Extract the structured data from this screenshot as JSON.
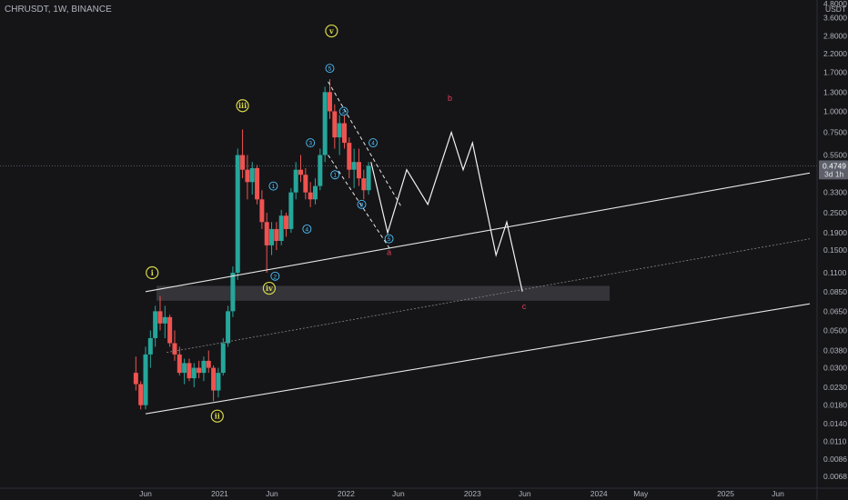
{
  "header": {
    "symbol": "CHRUSDT, 1W, BINANCE",
    "currency_top": "4.8000",
    "currency_unit": "USDT"
  },
  "price_tag": {
    "value": "0.4749",
    "countdown": "3d 1h",
    "color": "#5d606b"
  },
  "colors": {
    "up": "#26a69a",
    "down": "#ef5350",
    "wave": "#d8d84a",
    "subwave": "#4dc3ff",
    "corrective": "#e23e57",
    "zone": "#3a3a40"
  },
  "chart_data": {
    "type": "candlestick",
    "title": "",
    "y_scale": "log",
    "y_ticks": [
      3.6,
      2.8,
      2.2,
      1.7,
      1.3,
      1.0,
      0.75,
      0.55,
      0.43,
      0.33,
      0.25,
      0.19,
      0.15,
      0.11,
      0.085,
      0.065,
      0.05,
      0.038,
      0.03,
      0.023,
      0.018,
      0.014,
      0.011,
      0.0086,
      0.0068
    ],
    "y_tick_labels": [
      "3.6000",
      "2.8000",
      "2.2000",
      "1.7000",
      "1.3000",
      "1.0000",
      "0.7500",
      "0.5500",
      "0.4300",
      "0.3300",
      "0.2500",
      "0.1900",
      "0.1500",
      "0.1100",
      "0.0850",
      "0.0650",
      "0.0500",
      "0.0380",
      "0.0300",
      "0.0230",
      "0.0180",
      "0.0140",
      "0.0110",
      "0.0086",
      "0.0068"
    ],
    "x_tick_labels": [
      "Jun",
      "2021",
      "Jun",
      "2022",
      "Jun",
      "2023",
      "Jun",
      "2024",
      "May",
      "2025",
      "Jun"
    ],
    "x_tick_dates": [
      "2020-06-01",
      "2021-01-01",
      "2021-06-01",
      "2022-01-01",
      "2022-06-01",
      "2023-01-01",
      "2023-06-01",
      "2024-01-01",
      "2024-05-01",
      "2025-01-01",
      "2025-06-01"
    ],
    "candles": [
      [
        "2020-05-04",
        0.028,
        0.035,
        0.022,
        0.024
      ],
      [
        "2020-05-18",
        0.024,
        0.025,
        0.017,
        0.018
      ],
      [
        "2020-06-01",
        0.018,
        0.04,
        0.017,
        0.036
      ],
      [
        "2020-06-15",
        0.036,
        0.05,
        0.03,
        0.045
      ],
      [
        "2020-06-29",
        0.045,
        0.07,
        0.04,
        0.065
      ],
      [
        "2020-07-13",
        0.065,
        0.08,
        0.05,
        0.055
      ],
      [
        "2020-07-27",
        0.055,
        0.07,
        0.045,
        0.06
      ],
      [
        "2020-08-10",
        0.06,
        0.062,
        0.04,
        0.042
      ],
      [
        "2020-08-24",
        0.042,
        0.05,
        0.033,
        0.036
      ],
      [
        "2020-09-07",
        0.036,
        0.04,
        0.027,
        0.028
      ],
      [
        "2020-09-21",
        0.028,
        0.034,
        0.024,
        0.032
      ],
      [
        "2020-10-05",
        0.032,
        0.034,
        0.025,
        0.026
      ],
      [
        "2020-10-19",
        0.026,
        0.032,
        0.023,
        0.03
      ],
      [
        "2020-11-02",
        0.03,
        0.033,
        0.026,
        0.028
      ],
      [
        "2020-11-16",
        0.028,
        0.035,
        0.025,
        0.033
      ],
      [
        "2020-11-30",
        0.033,
        0.038,
        0.028,
        0.03
      ],
      [
        "2020-12-14",
        0.03,
        0.031,
        0.019,
        0.022
      ],
      [
        "2020-12-28",
        0.022,
        0.03,
        0.02,
        0.028
      ],
      [
        "2021-01-11",
        0.028,
        0.045,
        0.027,
        0.042
      ],
      [
        "2021-01-25",
        0.042,
        0.07,
        0.04,
        0.065
      ],
      [
        "2021-02-08",
        0.065,
        0.12,
        0.06,
        0.11
      ],
      [
        "2021-02-22",
        0.11,
        0.6,
        0.1,
        0.55
      ],
      [
        "2021-03-08",
        0.55,
        0.78,
        0.4,
        0.45
      ],
      [
        "2021-03-22",
        0.45,
        0.55,
        0.3,
        0.38
      ],
      [
        "2021-04-05",
        0.38,
        0.5,
        0.32,
        0.46
      ],
      [
        "2021-04-19",
        0.46,
        0.48,
        0.28,
        0.3
      ],
      [
        "2021-05-03",
        0.3,
        0.34,
        0.2,
        0.22
      ],
      [
        "2021-05-17",
        0.22,
        0.25,
        0.11,
        0.16
      ],
      [
        "2021-05-31",
        0.16,
        0.22,
        0.14,
        0.2
      ],
      [
        "2021-06-14",
        0.2,
        0.22,
        0.15,
        0.17
      ],
      [
        "2021-06-28",
        0.17,
        0.26,
        0.16,
        0.24
      ],
      [
        "2021-07-12",
        0.24,
        0.25,
        0.18,
        0.2
      ],
      [
        "2021-07-26",
        0.2,
        0.35,
        0.19,
        0.33
      ],
      [
        "2021-08-09",
        0.33,
        0.5,
        0.3,
        0.45
      ],
      [
        "2021-08-23",
        0.45,
        0.55,
        0.38,
        0.42
      ],
      [
        "2021-09-06",
        0.42,
        0.46,
        0.3,
        0.33
      ],
      [
        "2021-09-20",
        0.33,
        0.38,
        0.27,
        0.3
      ],
      [
        "2021-10-04",
        0.3,
        0.4,
        0.28,
        0.36
      ],
      [
        "2021-10-18",
        0.36,
        0.6,
        0.34,
        0.55
      ],
      [
        "2021-11-01",
        0.55,
        1.4,
        0.5,
        1.3
      ],
      [
        "2021-11-15",
        1.3,
        1.55,
        0.9,
        1.0
      ],
      [
        "2021-11-29",
        1.0,
        1.1,
        0.6,
        0.7
      ],
      [
        "2021-12-13",
        0.7,
        0.95,
        0.55,
        0.85
      ],
      [
        "2021-12-27",
        0.85,
        0.95,
        0.6,
        0.65
      ],
      [
        "2022-01-10",
        0.65,
        0.7,
        0.4,
        0.45
      ],
      [
        "2022-01-24",
        0.45,
        0.6,
        0.35,
        0.5
      ],
      [
        "2022-02-07",
        0.5,
        0.6,
        0.36,
        0.4
      ],
      [
        "2022-02-21",
        0.4,
        0.45,
        0.3,
        0.34
      ],
      [
        "2022-03-07",
        0.34,
        0.5,
        0.32,
        0.4749
      ]
    ],
    "channels": [
      {
        "name": "upper",
        "p1": [
          "2020-06-01",
          0.085
        ],
        "p2": [
          "2025-09-01",
          0.43
        ],
        "style": "solid"
      },
      {
        "name": "lower",
        "p1": [
          "2020-06-01",
          0.016
        ],
        "p2": [
          "2025-09-01",
          0.072
        ],
        "style": "solid"
      },
      {
        "name": "median",
        "p1": [
          "2020-08-01",
          0.037
        ],
        "p2": [
          "2025-09-01",
          0.175
        ],
        "style": "dotted"
      }
    ],
    "wedge_lines": [
      {
        "p1": [
          "2021-11-10",
          1.5
        ],
        "p2": [
          "2022-06-10",
          0.27
        ]
      },
      {
        "p1": [
          "2021-11-10",
          0.55
        ],
        "p2": [
          "2022-05-10",
          0.15
        ]
      }
    ],
    "projection_path": [
      [
        "2022-03-14",
        0.5
      ],
      [
        "2022-05-01",
        0.19
      ],
      [
        "2022-06-25",
        0.45
      ],
      [
        "2022-08-25",
        0.28
      ],
      [
        "2022-11-01",
        0.75
      ],
      [
        "2022-12-05",
        0.45
      ],
      [
        "2023-01-01",
        0.65
      ],
      [
        "2023-03-10",
        0.14
      ],
      [
        "2023-04-10",
        0.22
      ],
      [
        "2023-05-25",
        0.085
      ]
    ],
    "support_zone": {
      "from": "2020-06-01",
      "to": "2024-02-01",
      "low": 0.075,
      "high": 0.092
    },
    "last_price_line": 0.4749,
    "wave_labels": [
      {
        "text": "i",
        "date": "2020-06-20",
        "price": 0.11,
        "kind": "wave"
      },
      {
        "text": "ii",
        "date": "2020-12-25",
        "price": 0.0155,
        "kind": "wave"
      },
      {
        "text": "iii",
        "date": "2021-03-08",
        "price": 1.08,
        "kind": "wave"
      },
      {
        "text": "iv",
        "date": "2021-05-24",
        "price": 0.089,
        "kind": "wave"
      },
      {
        "text": "v",
        "date": "2021-11-20",
        "price": 3.0,
        "kind": "wave"
      }
    ],
    "subwave_labels": [
      {
        "text": "5",
        "date": "2021-11-15",
        "price": 1.8,
        "kind": "subwave"
      },
      {
        "text": "2",
        "date": "2021-12-25",
        "price": 1.0,
        "kind": "subwave"
      },
      {
        "text": "3",
        "date": "2021-09-20",
        "price": 0.65,
        "kind": "subwave"
      },
      {
        "text": "1",
        "date": "2021-06-05",
        "price": 0.36,
        "kind": "subwave"
      },
      {
        "text": "4",
        "date": "2021-09-10",
        "price": 0.2,
        "kind": "subwave"
      },
      {
        "text": "2",
        "date": "2021-06-10",
        "price": 0.105,
        "kind": "subwave"
      },
      {
        "text": "1",
        "date": "2021-11-30",
        "price": 0.42,
        "kind": "subwave"
      },
      {
        "text": "3",
        "date": "2022-02-15",
        "price": 0.28,
        "kind": "subwave"
      },
      {
        "text": "4",
        "date": "2022-03-20",
        "price": 0.65,
        "kind": "subwave"
      },
      {
        "text": "5",
        "date": "2022-05-05",
        "price": 0.175,
        "kind": "subwave"
      }
    ],
    "corrective_labels": [
      {
        "text": "a",
        "date": "2022-05-05",
        "price": 0.14
      },
      {
        "text": "b",
        "date": "2022-10-28",
        "price": 1.15
      },
      {
        "text": "c",
        "date": "2023-05-30",
        "price": 0.067
      }
    ]
  }
}
